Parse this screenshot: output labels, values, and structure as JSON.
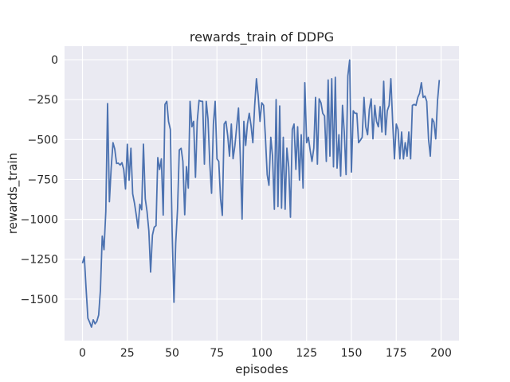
{
  "figure": {
    "background_color": "#ffffff",
    "style": "seaborn-darkgrid",
    "panel_color": "#eaeaf2",
    "grid_color": "#ffffff",
    "text_color": "#262626"
  },
  "chart_data": {
    "type": "line",
    "title": "rewards_train of DDPG",
    "xlabel": "episodes",
    "ylabel": "rewards_train",
    "legend": "none",
    "grid": true,
    "line_color": "#4c72b0",
    "line_width": 1.8,
    "xlim": [
      -10,
      210
    ],
    "ylim": [
      -1760,
      85
    ],
    "xticks": [
      0,
      25,
      50,
      75,
      100,
      125,
      150,
      175,
      200
    ],
    "yticks": [
      0,
      -250,
      -500,
      -750,
      -1000,
      -1250,
      -1500
    ],
    "xtick_labels": [
      "0",
      "25",
      "50",
      "75",
      "100",
      "125",
      "150",
      "175",
      "200"
    ],
    "ytick_labels": [
      "0",
      "−250",
      "−500",
      "−750",
      "−1000",
      "−1250",
      "−1500"
    ],
    "x_start": 0,
    "x_step": 1,
    "series": [
      {
        "name": "rewards_train",
        "values": [
          -1275,
          -1235,
          -1430,
          -1620,
          -1645,
          -1675,
          -1630,
          -1655,
          -1640,
          -1600,
          -1445,
          -1105,
          -1190,
          -950,
          -275,
          -890,
          -680,
          -520,
          -560,
          -650,
          -648,
          -660,
          -645,
          -688,
          -810,
          -530,
          -755,
          -555,
          -840,
          -900,
          -973,
          -1056,
          -906,
          -940,
          -529,
          -872,
          -950,
          -1073,
          -1330,
          -1100,
          -1050,
          -1040,
          -613,
          -688,
          -621,
          -973,
          -280,
          -261,
          -387,
          -437,
          -1073,
          -1520,
          -1150,
          -936,
          -565,
          -555,
          -637,
          -971,
          -670,
          -804,
          -261,
          -420,
          -386,
          -737,
          -386,
          -255,
          -260,
          -261,
          -654,
          -261,
          -370,
          -654,
          -837,
          -403,
          -261,
          -621,
          -637,
          -871,
          -975,
          -403,
          -386,
          -478,
          -604,
          -403,
          -620,
          -537,
          -420,
          -303,
          -604,
          -998,
          -386,
          -537,
          -403,
          -336,
          -411,
          -520,
          -294,
          -119,
          -228,
          -386,
          -270,
          -286,
          -478,
          -720,
          -787,
          -486,
          -604,
          -937,
          -250,
          -920,
          -290,
          -930,
          -486,
          -937,
          -554,
          -671,
          -987,
          -437,
          -403,
          -687,
          -420,
          -754,
          -470,
          -804,
          -144,
          -520,
          -486,
          -570,
          -637,
          -554,
          -236,
          -654,
          -245,
          -270,
          -336,
          -353,
          -637,
          -127,
          -604,
          -119,
          -671,
          -110,
          -679,
          -470,
          -729,
          -286,
          -453,
          -720,
          -102,
          -2,
          -704,
          -320,
          -336,
          -336,
          -520,
          -504,
          -486,
          -236,
          -420,
          -470,
          -311,
          -245,
          -496,
          -286,
          -386,
          -420,
          -294,
          -453,
          -135,
          -470,
          -320,
          -286,
          -119,
          -395,
          -621,
          -403,
          -437,
          -621,
          -453,
          -621,
          -520,
          -604,
          -453,
          -621,
          -286,
          -280,
          -286,
          -236,
          -211,
          -144,
          -236,
          -228,
          -261,
          -500,
          -604,
          -370,
          -390,
          -496,
          -260,
          -127
        ]
      }
    ]
  }
}
